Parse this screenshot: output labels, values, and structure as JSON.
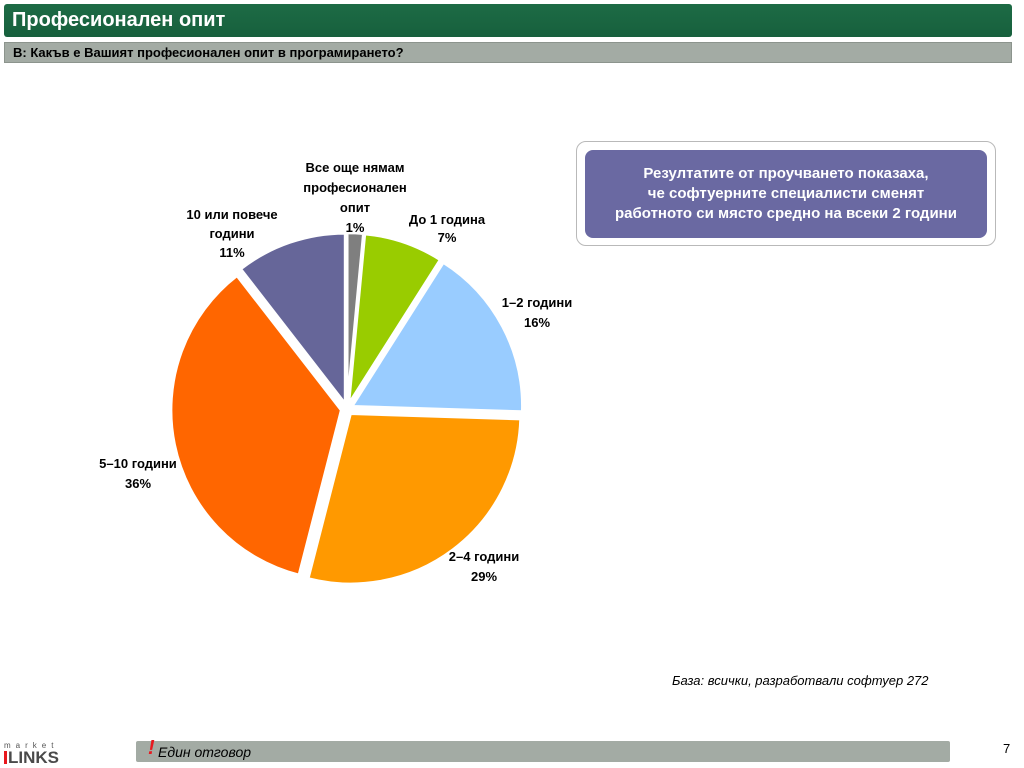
{
  "header": {
    "title": "Професионален опит",
    "question": "В: Какъв е Вашият професионален опит в програмирането?"
  },
  "callout": {
    "lines": [
      "Резултатите от проучването показаха,",
      "че софтуерните специалисти сменят",
      "работното си място средно на всеки 2 години"
    ]
  },
  "base_note": "База: всички, разработвали софтуер 272",
  "footer": {
    "exclamation": "!",
    "note": "Един отговор",
    "page_number": "7",
    "logo_small": "market",
    "logo_main": "LINKS"
  },
  "chart_data": {
    "type": "pie",
    "title": "",
    "slices": [
      {
        "label_lines": [
          "Все още нямам",
          "професионален",
          "опит"
        ],
        "value_label": "1%",
        "value": 1.5,
        "color": "#7f7f7f"
      },
      {
        "label_lines": [
          "До 1 година"
        ],
        "value_label": "7%",
        "value": 7.5,
        "color": "#99cc00"
      },
      {
        "label_lines": [
          "1–2 години"
        ],
        "value_label": "16%",
        "value": 16.5,
        "color": "#99ccff"
      },
      {
        "label_lines": [
          "2–4 години"
        ],
        "value_label": "29%",
        "value": 28.5,
        "color": "#ff9900"
      },
      {
        "label_lines": [
          "5–10 години"
        ],
        "value_label": "36%",
        "value": 35.5,
        "color": "#ff6600"
      },
      {
        "label_lines": [
          "10 или повече",
          "години"
        ],
        "value_label": "11%",
        "value": 10.5,
        "color": "#666699"
      }
    ]
  }
}
